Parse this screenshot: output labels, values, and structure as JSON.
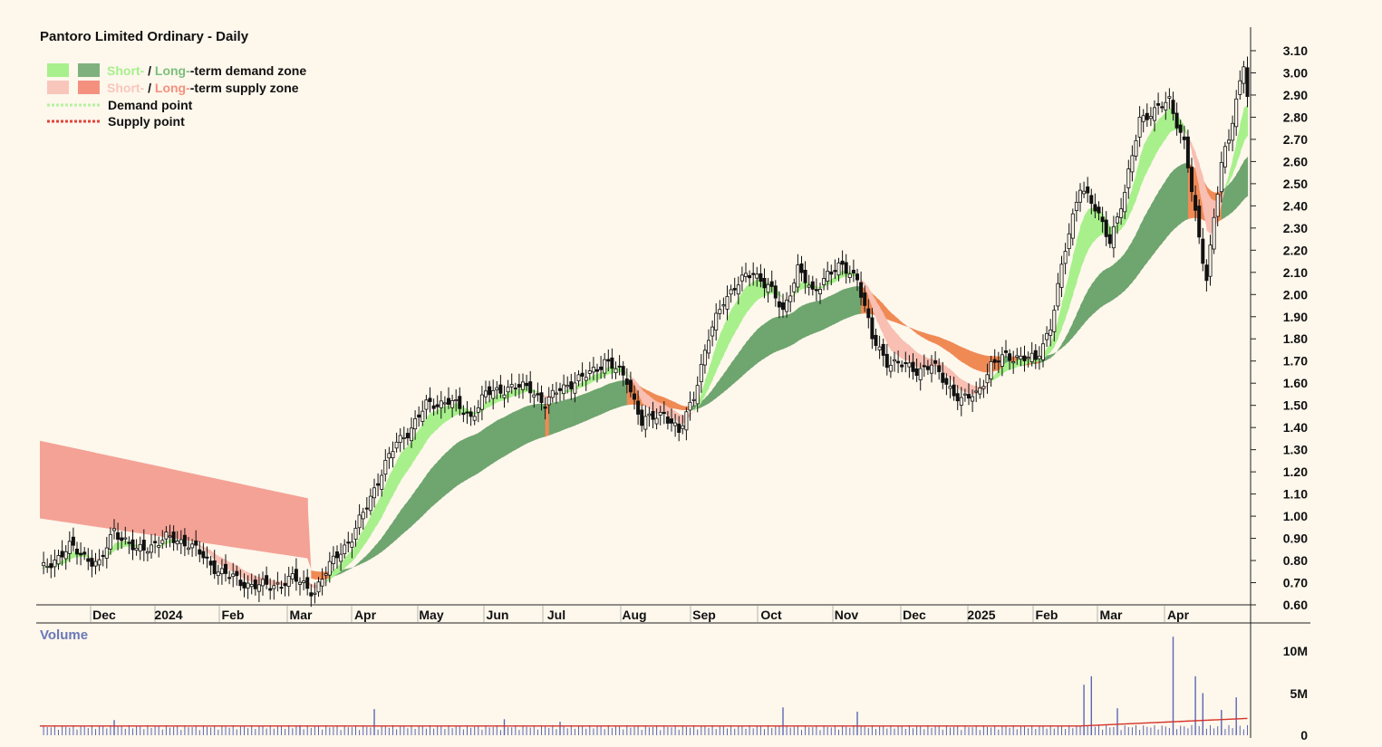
{
  "chart_data": {
    "type": "candlestick",
    "title": "Pantoro Limited Ordinary - Daily",
    "legend": [
      {
        "swatches": [
          "#a8f08c",
          "#7fb17f"
        ],
        "short": "Short-",
        "sep": " / ",
        "long": "Long-",
        "rest": "-term demand zone",
        "short_color": "#a8f08c",
        "long_color": "#7bbf7b"
      },
      {
        "swatches": [
          "#f9c6bc",
          "#f4917e"
        ],
        "short": "Short-",
        "sep": " / ",
        "long": "Long-",
        "rest": "-term supply zone",
        "short_color": "#f9c6bc",
        "long_color": "#f4917e"
      },
      {
        "line": "#b6f0a0",
        "label": "Demand point"
      },
      {
        "line": "#e0463a",
        "label": "Supply point"
      }
    ],
    "x_labels": [
      "Dec",
      "2024",
      "Feb",
      "Mar",
      "Apr",
      "May",
      "Jun",
      "Jul",
      "Aug",
      "Sep",
      "Oct",
      "Nov",
      "Dec",
      "2025",
      "Feb",
      "Mar",
      "Apr"
    ],
    "y_labels": [
      "0.60",
      "0.70",
      "0.80",
      "0.90",
      "1.00",
      "1.10",
      "1.20",
      "1.30",
      "1.40",
      "1.50",
      "1.60",
      "1.70",
      "1.80",
      "1.90",
      "2.00",
      "2.10",
      "2.20",
      "2.30",
      "2.40",
      "2.50",
      "2.60",
      "2.70",
      "2.80",
      "2.90",
      "3.00",
      "3.10"
    ],
    "ylim": [
      0.6,
      3.1
    ],
    "close_path": [
      [
        0,
        0.75
      ],
      [
        8,
        0.86
      ],
      [
        16,
        0.78
      ],
      [
        20,
        0.94
      ],
      [
        26,
        0.84
      ],
      [
        34,
        0.9
      ],
      [
        40,
        0.88
      ],
      [
        46,
        0.78
      ],
      [
        54,
        0.7
      ],
      [
        62,
        0.68
      ],
      [
        68,
        0.72
      ],
      [
        74,
        0.66
      ],
      [
        80,
        0.83
      ],
      [
        84,
        0.9
      ],
      [
        88,
        1.05
      ],
      [
        92,
        1.2
      ],
      [
        96,
        1.33
      ],
      [
        100,
        1.4
      ],
      [
        104,
        1.5
      ],
      [
        110,
        1.52
      ],
      [
        116,
        1.45
      ],
      [
        120,
        1.55
      ],
      [
        126,
        1.58
      ],
      [
        132,
        1.58
      ],
      [
        136,
        1.5
      ],
      [
        140,
        1.58
      ],
      [
        146,
        1.62
      ],
      [
        152,
        1.7
      ],
      [
        158,
        1.62
      ],
      [
        162,
        1.42
      ],
      [
        168,
        1.47
      ],
      [
        172,
        1.37
      ],
      [
        176,
        1.55
      ],
      [
        180,
        1.8
      ],
      [
        184,
        1.98
      ],
      [
        188,
        2.05
      ],
      [
        192,
        2.1
      ],
      [
        196,
        2.04
      ],
      [
        200,
        1.92
      ],
      [
        204,
        2.12
      ],
      [
        208,
        2.0
      ],
      [
        212,
        2.1
      ],
      [
        216,
        2.12
      ],
      [
        220,
        2.08
      ],
      [
        224,
        1.8
      ],
      [
        228,
        1.7
      ],
      [
        232,
        1.68
      ],
      [
        236,
        1.66
      ],
      [
        240,
        1.68
      ],
      [
        244,
        1.6
      ],
      [
        248,
        1.52
      ],
      [
        252,
        1.55
      ],
      [
        256,
        1.68
      ],
      [
        260,
        1.72
      ],
      [
        264,
        1.72
      ],
      [
        268,
        1.7
      ],
      [
        272,
        1.86
      ],
      [
        276,
        2.2
      ],
      [
        280,
        2.5
      ],
      [
        284,
        2.38
      ],
      [
        288,
        2.25
      ],
      [
        292,
        2.45
      ],
      [
        296,
        2.8
      ],
      [
        300,
        2.82
      ],
      [
        304,
        2.88
      ],
      [
        308,
        2.68
      ],
      [
        312,
        2.25
      ],
      [
        314,
        2.08
      ],
      [
        316,
        2.35
      ],
      [
        318,
        2.58
      ],
      [
        320,
        2.7
      ],
      [
        322,
        2.88
      ],
      [
        324,
        3.05
      ],
      [
        325,
        2.9
      ]
    ],
    "volume": {
      "label": "Volume",
      "y_labels": [
        "0",
        "5M",
        "10M"
      ],
      "ylim": [
        0,
        12
      ],
      "spikes": [
        [
          20,
          1.8
        ],
        [
          70,
          1.2
        ],
        [
          90,
          3.1
        ],
        [
          125,
          1.9
        ],
        [
          140,
          1.6
        ],
        [
          200,
          3.3
        ],
        [
          220,
          2.8
        ],
        [
          281,
          6.0
        ],
        [
          283,
          7.0
        ],
        [
          290,
          3.2
        ],
        [
          305,
          11.7
        ],
        [
          311,
          7.0
        ],
        [
          313,
          5.0
        ],
        [
          318,
          3.0
        ],
        [
          322,
          4.5
        ]
      ]
    }
  }
}
